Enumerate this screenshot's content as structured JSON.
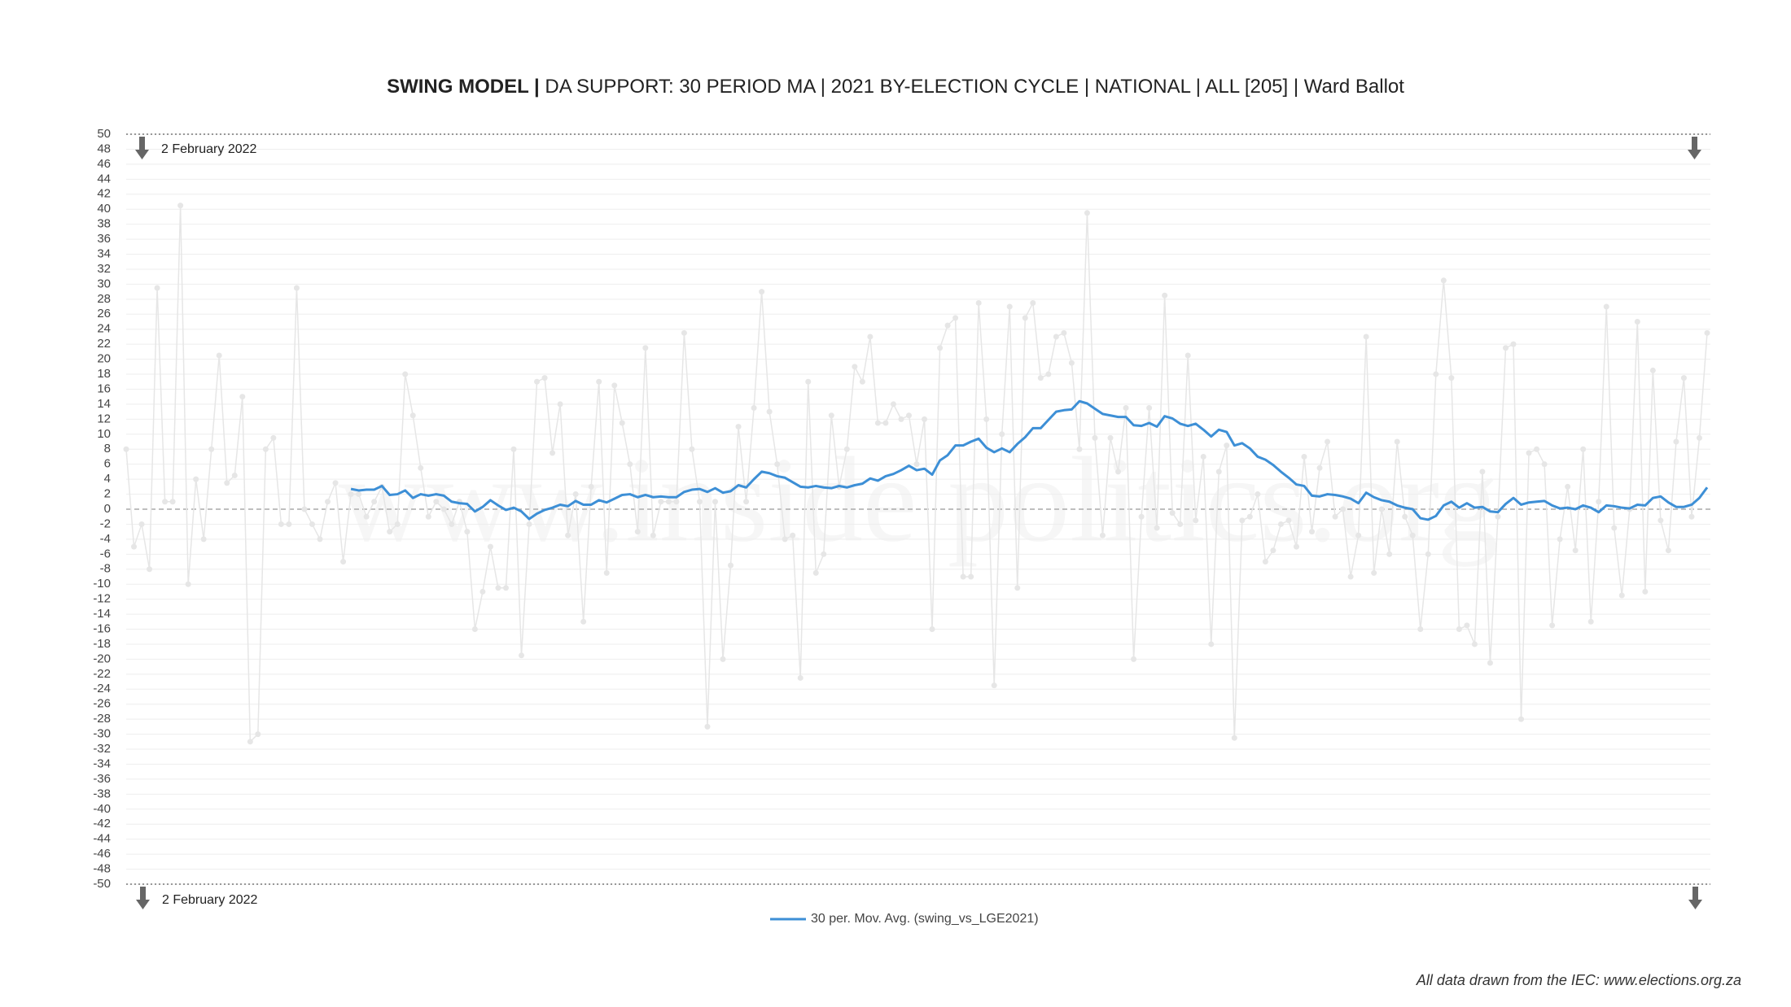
{
  "chart_data": {
    "type": "line",
    "title": [
      "SWING MODEL |",
      " DA SUPPORT: 30 PERIOD MA | 2021 BY-ELECTION CYCLE | NATIONAL | ALL [205] | Ward Ballot"
    ],
    "watermark": "www.inside politics.org",
    "annotations": [
      "2 February 2022",
      "2 February 2022"
    ],
    "source": "All data drawn from the IEC: www.elections.org.za",
    "ylim": [
      -50,
      50
    ],
    "yticks": [
      -50,
      -48,
      -46,
      -44,
      -42,
      -40,
      -38,
      -36,
      -34,
      -32,
      -30,
      -28,
      -26,
      -24,
      -22,
      -20,
      -18,
      -16,
      -14,
      -12,
      -10,
      -8,
      -6,
      -4,
      -2,
      0,
      2,
      4,
      6,
      8,
      10,
      12,
      14,
      16,
      18,
      20,
      22,
      24,
      26,
      28,
      30,
      32,
      34,
      36,
      38,
      40,
      42,
      44,
      46,
      48,
      50
    ],
    "grid": true,
    "legend": "bottom",
    "series": [
      {
        "color": "#e6e6e6",
        "markers": true,
        "values": [
          8,
          -5,
          -2,
          -8,
          29.5,
          1,
          1,
          40.5,
          -10,
          4,
          -4,
          8,
          20.5,
          3.5,
          4.5,
          15,
          -31,
          -30,
          8,
          9.5,
          -2,
          -2,
          29.5,
          0,
          -2,
          -4,
          1,
          3.5,
          -7,
          2,
          2,
          -1,
          1,
          3,
          -3,
          -2,
          18,
          12.5,
          5.5,
          -1,
          1,
          0,
          -2,
          1,
          -3,
          -16,
          -11,
          -5,
          -10.5,
          -10.5,
          8,
          -19.5,
          -2,
          17,
          17.5,
          7.5,
          14,
          -3.5,
          2,
          -15,
          3,
          17,
          -8.5,
          16.5,
          11.5,
          6,
          -3,
          21.5,
          -3.5,
          1,
          1,
          1,
          23.5,
          8,
          1,
          -29,
          1,
          -20,
          -7.5,
          11,
          1,
          13.5,
          29,
          13,
          6,
          -4,
          -3.5,
          -22.5,
          17,
          -8.5,
          -6,
          12.5,
          3,
          8,
          19,
          17,
          23,
          11.5,
          11.5,
          14,
          12,
          12.5,
          6,
          12,
          -16,
          21.5,
          24.5,
          25.5,
          -9,
          -9,
          27.5,
          12,
          -23.5,
          10,
          27,
          -10.5,
          25.5,
          27.5,
          17.5,
          18,
          23,
          23.5,
          19.5,
          8,
          39.5,
          9.5,
          -3.5,
          9.5,
          5,
          13.5,
          -20,
          -1,
          13.5,
          -2.5,
          28.5,
          -0.5,
          -2,
          20.5,
          -1.5,
          7,
          -18,
          5,
          8.5,
          -30.5,
          -1.5,
          -1,
          2,
          -7,
          -5.5,
          -2,
          -1.5,
          -5,
          7,
          -3,
          5.5,
          9,
          -1,
          0,
          -9,
          -3.5,
          23,
          -8.5,
          0,
          -6,
          9,
          -1,
          -3.5,
          -16,
          -6,
          18,
          30.5,
          17.5,
          -16,
          -15.5,
          -18,
          5,
          -20.5,
          -1,
          21.5,
          22,
          -28,
          7.5,
          8,
          6,
          -15.5,
          -4,
          3,
          -5.5,
          8,
          -15,
          1,
          27,
          -2.5,
          -11.5,
          0,
          25,
          -11,
          18.5,
          -1.5,
          -5.5,
          9,
          17.5,
          -1,
          9.5,
          23.5
        ]
      },
      {
        "name": "30 per. Mov. Avg. (swing_vs_LGE2021)",
        "color": "#3d8fd6",
        "values": [
          null,
          null,
          null,
          null,
          null,
          null,
          null,
          null,
          null,
          null,
          null,
          null,
          null,
          null,
          null,
          null,
          null,
          null,
          null,
          null,
          null,
          null,
          null,
          null,
          null,
          null,
          null,
          null,
          null,
          2.7,
          2.5,
          2.6,
          2.6,
          3.1,
          1.9,
          2.0,
          2.5,
          1.5,
          2.0,
          1.8,
          2.0,
          1.8,
          1.0,
          0.8,
          0.7,
          -0.3,
          0.3,
          1.2,
          0.5,
          -0.1,
          0.2,
          -0.3,
          -1.3,
          -0.6,
          -0.1,
          0.2,
          0.6,
          0.4,
          1.1,
          0.6,
          0.6,
          1.2,
          0.9,
          1.4,
          1.9,
          2.0,
          1.6,
          1.9,
          1.6,
          1.7,
          1.6,
          1.6,
          2.3,
          2.6,
          2.7,
          2.3,
          2.8,
          2.2,
          2.4,
          3.2,
          2.9,
          4.0,
          5.0,
          4.8,
          4.4,
          4.2,
          3.6,
          3.0,
          2.9,
          3.1,
          2.9,
          2.8,
          3.1,
          2.9,
          3.2,
          3.4,
          4.1,
          3.8,
          4.4,
          4.7,
          5.2,
          5.8,
          5.2,
          5.4,
          4.6,
          6.5,
          7.2,
          8.5,
          8.5,
          9.0,
          9.4,
          8.2,
          7.6,
          8.1,
          7.6,
          8.7,
          9.6,
          10.8,
          10.8,
          11.9,
          13.0,
          13.2,
          13.3,
          14.4,
          14.1,
          13.4,
          12.7,
          12.5,
          12.3,
          12.3,
          11.2,
          11.1,
          11.5,
          11.0,
          12.4,
          12.1,
          11.4,
          11.1,
          11.4,
          10.6,
          9.7,
          10.6,
          10.3,
          8.5,
          8.8,
          8.1,
          7.0,
          6.6,
          5.9,
          5.0,
          4.2,
          3.3,
          3.1,
          1.8,
          1.7,
          2.0,
          1.9,
          1.7,
          1.4,
          0.8,
          2.2,
          1.6,
          1.2,
          1.0,
          0.5,
          0.2,
          0.0,
          -1.2,
          -1.4,
          -0.9,
          0.5,
          1.0,
          0.2,
          0.8,
          0.2,
          0.3,
          -0.3,
          -0.4,
          0.7,
          1.5,
          0.6,
          0.9,
          1.0,
          1.1,
          0.5,
          0.1,
          0.2,
          0.0,
          0.5,
          0.2,
          -0.4,
          0.5,
          0.4,
          0.2,
          0.1,
          0.6,
          0.5,
          1.5,
          1.7,
          0.9,
          0.3,
          0.3,
          0.6,
          1.5,
          2.9
        ]
      }
    ]
  }
}
